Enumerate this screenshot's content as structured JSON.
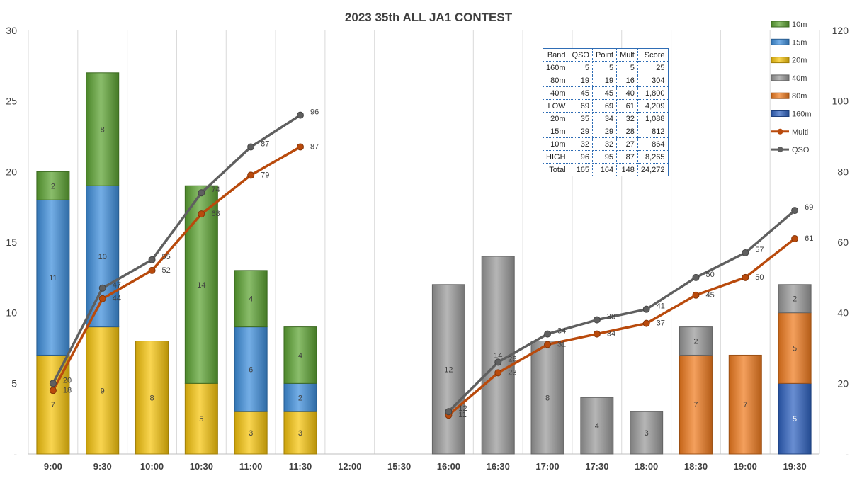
{
  "chart_data": {
    "type": "bar",
    "title": "2023 35th ALL JA1 CONTEST",
    "categories": [
      "9:00",
      "9:30",
      "10:00",
      "10:30",
      "11:00",
      "11:30",
      "12:00",
      "15:30",
      "16:00",
      "16:30",
      "17:00",
      "17:30",
      "18:00",
      "18:30",
      "19:00",
      "19:30"
    ],
    "stacked": true,
    "y_left": {
      "ticks": [
        "-",
        "5",
        "10",
        "15",
        "20",
        "25",
        "30"
      ],
      "range": [
        0,
        30
      ]
    },
    "y_right": {
      "ticks": [
        "-",
        "20",
        "40",
        "60",
        "80",
        "100",
        "120"
      ],
      "range": [
        0,
        120
      ]
    },
    "series": [
      {
        "name": "160m",
        "color": "#2e62c0",
        "values": [
          null,
          null,
          null,
          null,
          null,
          null,
          null,
          null,
          null,
          null,
          null,
          null,
          null,
          null,
          null,
          5
        ]
      },
      {
        "name": "80m",
        "color": "#f07b1e",
        "values": [
          null,
          null,
          null,
          null,
          null,
          null,
          null,
          null,
          null,
          null,
          null,
          null,
          null,
          7,
          7,
          5
        ]
      },
      {
        "name": "40m",
        "color": "#9a9a9a",
        "values": [
          null,
          null,
          null,
          null,
          null,
          null,
          null,
          null,
          12,
          14,
          8,
          4,
          3,
          2,
          null,
          2
        ]
      },
      {
        "name": "20m",
        "color": "#f6c40c",
        "values": [
          7,
          9,
          8,
          5,
          3,
          3,
          null,
          null,
          null,
          null,
          null,
          null,
          null,
          null,
          null,
          null
        ]
      },
      {
        "name": "15m",
        "color": "#3e8fdc",
        "values": [
          11,
          10,
          null,
          null,
          6,
          2,
          null,
          null,
          null,
          null,
          null,
          null,
          null,
          null,
          null,
          null
        ]
      },
      {
        "name": "10m",
        "color": "#5ca332",
        "values": [
          2,
          8,
          null,
          14,
          4,
          4,
          null,
          null,
          null,
          null,
          null,
          null,
          null,
          null,
          null,
          null
        ]
      }
    ],
    "lines": [
      {
        "name": "Multi",
        "color": "#b94a0c",
        "axis": "right",
        "values": [
          18,
          44,
          52,
          68,
          79,
          87,
          null,
          null,
          11,
          23,
          31,
          34,
          37,
          45,
          50,
          61
        ]
      },
      {
        "name": "QSO",
        "color": "#5f5f5f",
        "axis": "right",
        "values": [
          20,
          47,
          55,
          74,
          87,
          96,
          null,
          null,
          12,
          26,
          34,
          38,
          41,
          50,
          57,
          69
        ]
      }
    ],
    "legend_order": [
      "10m",
      "15m",
      "20m",
      "40m",
      "80m",
      "160m",
      "Multi",
      "QSO"
    ],
    "legend_position": "right",
    "grid": "vertical"
  },
  "score_table": {
    "headers": [
      "Band",
      "QSO",
      "Point",
      "Mult",
      "Score"
    ],
    "rows": [
      [
        "160m",
        "5",
        "5",
        "5",
        "25"
      ],
      [
        "80m",
        "19",
        "19",
        "16",
        "304"
      ],
      [
        "40m",
        "45",
        "45",
        "40",
        "1,800"
      ],
      [
        "LOW",
        "69",
        "69",
        "61",
        "4,209"
      ],
      [
        "20m",
        "35",
        "34",
        "32",
        "1,088"
      ],
      [
        "15m",
        "29",
        "29",
        "28",
        "812"
      ],
      [
        "10m",
        "32",
        "32",
        "27",
        "864"
      ],
      [
        "HIGH",
        "96",
        "95",
        "87",
        "8,265"
      ],
      [
        "Total",
        "165",
        "164",
        "148",
        "24,272"
      ]
    ]
  }
}
